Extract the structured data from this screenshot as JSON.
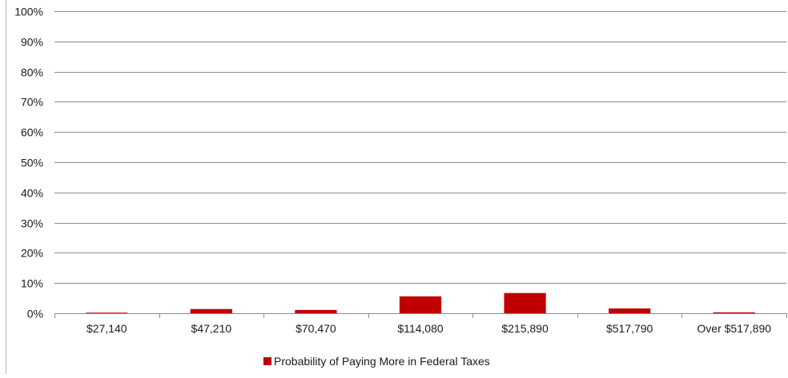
{
  "chart_data": {
    "type": "bar",
    "title": "",
    "xlabel": "",
    "ylabel": "",
    "categories": [
      "$27,140",
      "$47,210",
      "$70,470",
      "$114,080",
      "$215,890",
      "$517,790",
      "Over $517,890"
    ],
    "series": [
      {
        "name": "Probability of Paying More in Federal Taxes",
        "values": [
          0.2,
          1.4,
          1.1,
          5.6,
          6.7,
          1.6,
          0.3
        ],
        "color": "#c00000"
      }
    ],
    "ylim": [
      0,
      100
    ],
    "yticks": [
      "0%",
      "10%",
      "20%",
      "30%",
      "40%",
      "50%",
      "60%",
      "70%",
      "80%",
      "90%",
      "100%"
    ],
    "grid": true,
    "legend": "bottom"
  }
}
